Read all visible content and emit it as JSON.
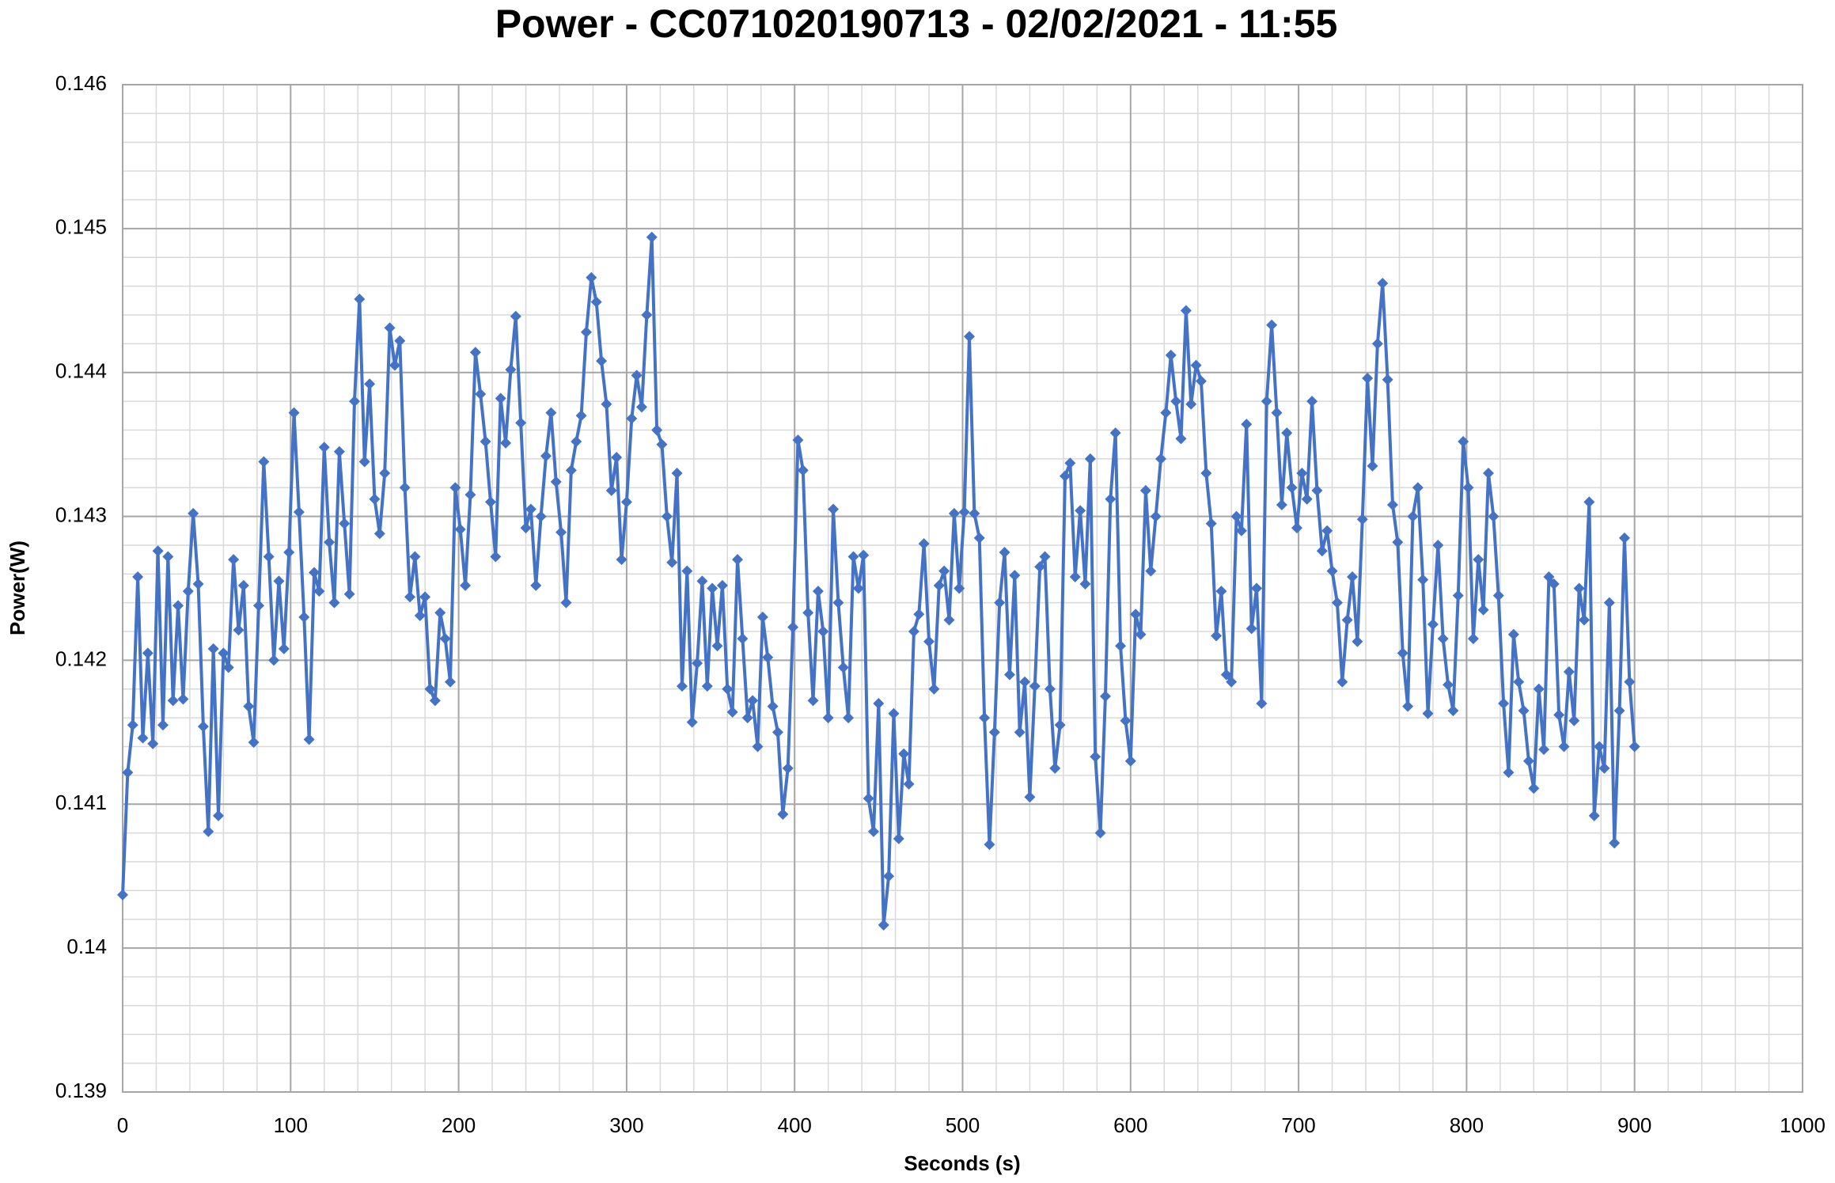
{
  "chart_data": {
    "type": "line",
    "title": "Power - CC071020190713 - 02/02/2021 - 11:55",
    "x_label": "Seconds (s)",
    "y_label": "Power(W)",
    "color": "#4472c4",
    "marker": "diamond",
    "xlim": [
      0,
      1000
    ],
    "xticks": [
      0,
      100,
      200,
      300,
      400,
      500,
      600,
      700,
      800,
      900,
      1000
    ],
    "ylim": [
      0.139,
      0.146
    ],
    "yticks": [
      0.146,
      0.145,
      0.144,
      0.143,
      0.142,
      0.141,
      0.14,
      0.139
    ],
    "grid": true,
    "minor_grid": {
      "x_step": 20,
      "y_step": 0.0002
    },
    "x": [
      0,
      3,
      6,
      9,
      12,
      15,
      18,
      21,
      24,
      27,
      30,
      33,
      36,
      39,
      42,
      45,
      48,
      51,
      54,
      57,
      60,
      63,
      66,
      69,
      72,
      75,
      78,
      81,
      84,
      87,
      90,
      93,
      96,
      99,
      102,
      105,
      108,
      111,
      114,
      117,
      120,
      123,
      126,
      129,
      132,
      135,
      138,
      141,
      144,
      147,
      150,
      153,
      156,
      159,
      162,
      165,
      168,
      171,
      174,
      177,
      180,
      183,
      186,
      189,
      192,
      195,
      198,
      201,
      204,
      207,
      210,
      213,
      216,
      219,
      222,
      225,
      228,
      231,
      234,
      237,
      240,
      243,
      246,
      249,
      252,
      255,
      258,
      261,
      264,
      267,
      270,
      273,
      276,
      279,
      282,
      285,
      288,
      291,
      294,
      297,
      300,
      303,
      306,
      309,
      312,
      315,
      318,
      321,
      324,
      327,
      330,
      333,
      336,
      339,
      342,
      345,
      348,
      351,
      354,
      357,
      360,
      363,
      366,
      369,
      372,
      375,
      378,
      381,
      384,
      387,
      390,
      393,
      396,
      399,
      402,
      405,
      408,
      411,
      414,
      417,
      420,
      423,
      426,
      429,
      432,
      435,
      438,
      441,
      444,
      447,
      450,
      453,
      456,
      459,
      462,
      465,
      468,
      471,
      474,
      477,
      480,
      483,
      486,
      489,
      492,
      495,
      498,
      501,
      504,
      507,
      510,
      513,
      516,
      519,
      522,
      525,
      528,
      531,
      534,
      537,
      540,
      543,
      546,
      549,
      552,
      555,
      558,
      561,
      564,
      567,
      570,
      573,
      576,
      579,
      582,
      585,
      588,
      591,
      594,
      597,
      600,
      603,
      606,
      609,
      612,
      615,
      618,
      621,
      624,
      627,
      630,
      633,
      636,
      639,
      642,
      645,
      648,
      651,
      654,
      657,
      660,
      663,
      666,
      669,
      672,
      675,
      678,
      681,
      684,
      687,
      690,
      693,
      696,
      699,
      702,
      705,
      708,
      711,
      714,
      717,
      720,
      723,
      726,
      729,
      732,
      735,
      738,
      741,
      744,
      747,
      750,
      753,
      756,
      759,
      762,
      765,
      768,
      771,
      774,
      777,
      780,
      783,
      786,
      789,
      792,
      795,
      798,
      801,
      804,
      807,
      810,
      813,
      816,
      819,
      822,
      825,
      828,
      831,
      834,
      837,
      840,
      843,
      846,
      849,
      852,
      855,
      858,
      861,
      864,
      867,
      870,
      873,
      876,
      879,
      882,
      885,
      888,
      891,
      894,
      897,
      900
    ],
    "values": [
      0.14037,
      0.14122,
      0.14155,
      0.14258,
      0.14146,
      0.14205,
      0.14142,
      0.14276,
      0.14155,
      0.14272,
      0.14172,
      0.14238,
      0.14173,
      0.14248,
      0.14302,
      0.14253,
      0.14154,
      0.14081,
      0.14208,
      0.14092,
      0.14205,
      0.14195,
      0.1427,
      0.14221,
      0.14252,
      0.14168,
      0.14143,
      0.14238,
      0.14338,
      0.14272,
      0.142,
      0.14255,
      0.14208,
      0.14275,
      0.14372,
      0.14303,
      0.1423,
      0.14145,
      0.14261,
      0.14248,
      0.14348,
      0.14282,
      0.1424,
      0.14345,
      0.14295,
      0.14246,
      0.1438,
      0.14451,
      0.14338,
      0.14392,
      0.14312,
      0.14288,
      0.1433,
      0.14431,
      0.14405,
      0.14422,
      0.1432,
      0.14244,
      0.14272,
      0.14231,
      0.14244,
      0.1418,
      0.14172,
      0.14233,
      0.14215,
      0.14185,
      0.1432,
      0.14291,
      0.14252,
      0.14315,
      0.14414,
      0.14385,
      0.14352,
      0.1431,
      0.14272,
      0.14382,
      0.14351,
      0.14402,
      0.14439,
      0.14365,
      0.14292,
      0.14305,
      0.14252,
      0.143,
      0.14342,
      0.14372,
      0.14324,
      0.14289,
      0.1424,
      0.14332,
      0.14352,
      0.1437,
      0.14428,
      0.14466,
      0.14449,
      0.14408,
      0.14378,
      0.14318,
      0.14341,
      0.1427,
      0.1431,
      0.14368,
      0.14398,
      0.14376,
      0.1444,
      0.14494,
      0.1436,
      0.1435,
      0.143,
      0.14268,
      0.1433,
      0.14182,
      0.14262,
      0.14157,
      0.14198,
      0.14255,
      0.14182,
      0.1425,
      0.1421,
      0.14252,
      0.1418,
      0.14164,
      0.1427,
      0.14215,
      0.1416,
      0.14172,
      0.1414,
      0.1423,
      0.14202,
      0.14168,
      0.1415,
      0.14093,
      0.14125,
      0.14223,
      0.14353,
      0.14332,
      0.14233,
      0.14172,
      0.14248,
      0.1422,
      0.1416,
      0.14305,
      0.1424,
      0.14195,
      0.1416,
      0.14272,
      0.1425,
      0.14273,
      0.14104,
      0.14081,
      0.1417,
      0.14016,
      0.1405,
      0.14163,
      0.14076,
      0.14135,
      0.14114,
      0.1422,
      0.14232,
      0.14281,
      0.14213,
      0.1418,
      0.14252,
      0.14262,
      0.14228,
      0.14302,
      0.1425,
      0.14303,
      0.14425,
      0.14302,
      0.14285,
      0.1416,
      0.14072,
      0.1415,
      0.1424,
      0.14275,
      0.1419,
      0.14259,
      0.1415,
      0.14185,
      0.14105,
      0.14182,
      0.14265,
      0.14272,
      0.1418,
      0.14125,
      0.14155,
      0.14328,
      0.14337,
      0.14258,
      0.14304,
      0.14253,
      0.1434,
      0.14133,
      0.1408,
      0.14175,
      0.14312,
      0.14358,
      0.1421,
      0.14158,
      0.1413,
      0.14232,
      0.14218,
      0.14318,
      0.14262,
      0.143,
      0.1434,
      0.14372,
      0.14412,
      0.1438,
      0.14354,
      0.14443,
      0.14378,
      0.14405,
      0.14394,
      0.1433,
      0.14295,
      0.14217,
      0.14248,
      0.1419,
      0.14185,
      0.143,
      0.1429,
      0.14364,
      0.14222,
      0.1425,
      0.1417,
      0.1438,
      0.14433,
      0.14372,
      0.14308,
      0.14358,
      0.1432,
      0.14292,
      0.1433,
      0.14312,
      0.1438,
      0.14318,
      0.14276,
      0.1429,
      0.14262,
      0.1424,
      0.14185,
      0.14228,
      0.14258,
      0.14213,
      0.14298,
      0.14396,
      0.14335,
      0.1442,
      0.14462,
      0.14395,
      0.14308,
      0.14282,
      0.14205,
      0.14168,
      0.143,
      0.1432,
      0.14256,
      0.14163,
      0.14225,
      0.1428,
      0.14215,
      0.14183,
      0.14165,
      0.14245,
      0.14352,
      0.1432,
      0.14215,
      0.1427,
      0.14235,
      0.1433,
      0.143,
      0.14245,
      0.1417,
      0.14122,
      0.14218,
      0.14185,
      0.14165,
      0.1413,
      0.14111,
      0.1418,
      0.14138,
      0.14258,
      0.14253,
      0.14162,
      0.1414,
      0.14192,
      0.14158,
      0.1425,
      0.14228,
      0.1431,
      0.14092,
      0.1414,
      0.14125,
      0.1424,
      0.14073,
      0.14165,
      0.14285,
      0.14185,
      0.1414
    ]
  }
}
